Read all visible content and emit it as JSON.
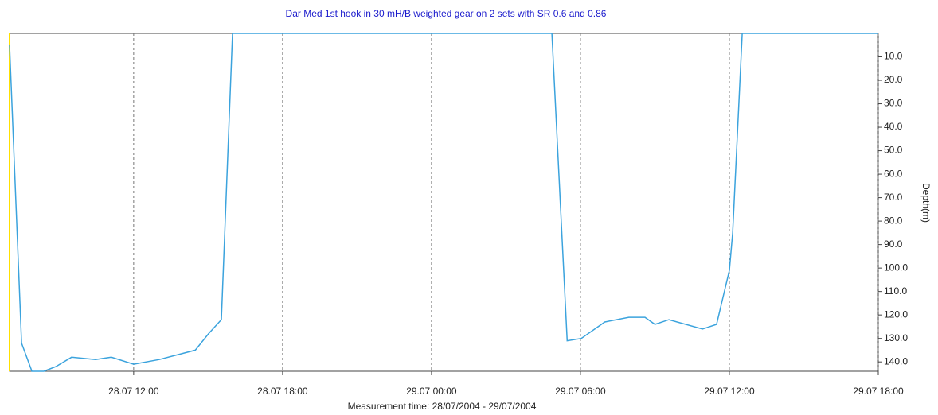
{
  "chart_data": {
    "type": "line",
    "title": "Dar Med 1st hook in 30 mH/B weighted gear on 2 sets with SR 0.6 and 0.86",
    "x_label": "Measurement time: 28/07/2004 - 29/07/2004",
    "y_label": "Depth(m)",
    "x": [
      "28.07 07:00",
      "28.07 07:29",
      "28.07 07:54",
      "28.07 08:23",
      "28.07 08:52",
      "28.07 09:30",
      "28.07 10:28",
      "28.07 11:06",
      "28.07 12:00",
      "28.07 13:02",
      "28.07 14:29",
      "28.07 15:01",
      "28.07 15:32",
      "28.07 15:59",
      "29.07 04:51",
      "29.07 05:28",
      "29.07 06:02",
      "29.07 06:59",
      "29.07 07:57",
      "29.07 08:36",
      "29.07 09:00",
      "29.07 09:34",
      "29.07 10:55",
      "29.07 11:29",
      "29.07 12:00",
      "29.07 12:08",
      "29.07 12:31",
      "29.07 18:00"
    ],
    "values": [
      5,
      132,
      144,
      144,
      142,
      138,
      139,
      138,
      141,
      139,
      135,
      128,
      122,
      0,
      0,
      131,
      130,
      123,
      121,
      121,
      124,
      122,
      126,
      124,
      101,
      85,
      0,
      0
    ],
    "color": "#3ba3dd",
    "xlim": [
      "28.07 07:00",
      "29.07 18:00"
    ],
    "xticks": [
      "28.07 12:00",
      "28.07 18:00",
      "29.07 00:00",
      "29.07 06:00",
      "29.07 12:00",
      "29.07 18:00"
    ],
    "ylim": [
      0,
      144
    ],
    "y_inverted": true,
    "yticks": [
      {
        "value": 10,
        "label": "10.0"
      },
      {
        "value": 20,
        "label": "20.0"
      },
      {
        "value": 30,
        "label": "30.0"
      },
      {
        "value": 40,
        "label": "40.0"
      },
      {
        "value": 50,
        "label": "50.0"
      },
      {
        "value": 60,
        "label": "60.0"
      },
      {
        "value": 70,
        "label": "70.0"
      },
      {
        "value": 80,
        "label": "80.0"
      },
      {
        "value": 90,
        "label": "90.0"
      },
      {
        "value": 100,
        "label": "100.0"
      },
      {
        "value": 110,
        "label": "110.0"
      },
      {
        "value": 120,
        "label": "120.0"
      },
      {
        "value": 130,
        "label": "130.0"
      },
      {
        "value": 140,
        "label": "140.0"
      }
    ],
    "grid": true
  }
}
